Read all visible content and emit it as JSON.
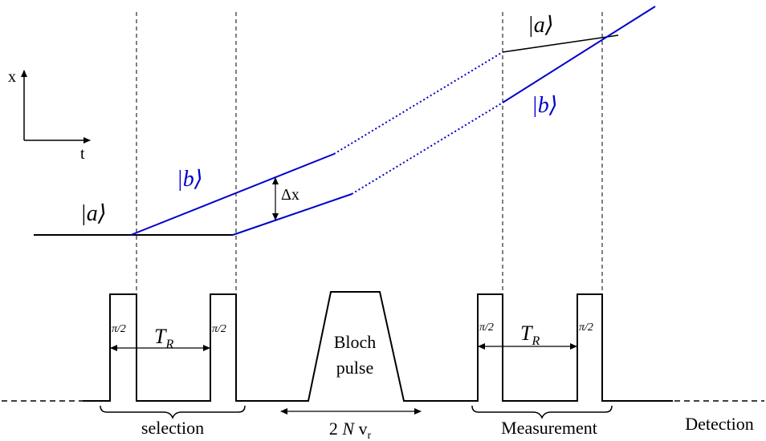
{
  "axes": {
    "x_label": "x",
    "t_label": "t"
  },
  "states": {
    "a_left": "|a⟩",
    "b_left": "|b⟩",
    "a_right": "|a⟩",
    "b_right": "|b⟩"
  },
  "labels": {
    "delta_x": "Δx",
    "pi_half": "π/2",
    "tr_symbol": "T",
    "tr_subscript": "R",
    "bloch_line1": "Bloch",
    "bloch_line2": "pulse",
    "two_n_vr_prefix": "2 ",
    "two_n_vr_N": "N",
    "two_n_vr_v": " v",
    "two_n_vr_sub": "r",
    "selection": "selection",
    "measurement": "Measurement",
    "detection": "Detection"
  },
  "colors": {
    "black": "#000000",
    "blue": "#0000cc"
  }
}
